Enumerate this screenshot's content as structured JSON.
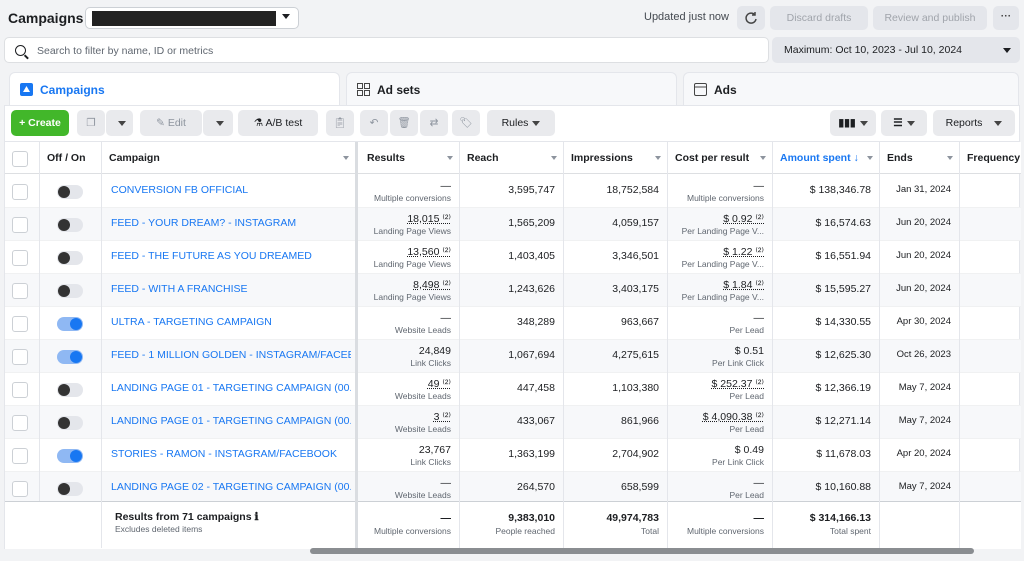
{
  "header": {
    "title": "Campaigns",
    "updated": "Updated just now",
    "discard_label": "Discard drafts",
    "publish_label": "Review and publish",
    "more_label": "···"
  },
  "search": {
    "placeholder": "Search to filter by name, ID or metrics"
  },
  "date_range": "Maximum: Oct 10, 2023 - Jul 10, 2024",
  "tabs": [
    {
      "label": "Campaigns"
    },
    {
      "label": "Ad sets"
    },
    {
      "label": "Ads"
    }
  ],
  "toolbar": {
    "create": "+ Create",
    "edit": "Edit",
    "ab_test": "A/B test",
    "rules": "Rules",
    "reports": "Reports"
  },
  "columns": {
    "offon": "Off / On",
    "campaign": "Campaign",
    "results": "Results",
    "reach": "Reach",
    "impressions": "Impressions",
    "cpr": "Cost per result",
    "amount": "Amount spent ↓",
    "ends": "Ends",
    "frequency": "Frequency"
  },
  "rows": [
    {
      "name": "CONVERSION FB OFFICIAL",
      "on": false,
      "results": "—",
      "results_sub": "Multiple conversions",
      "reach": "3,595,747",
      "impressions": "18,752,584",
      "cpr": "—",
      "cpr_sub": "Multiple conversions",
      "amount": "$ 138,346.78",
      "ends": "Jan 31, 2024"
    },
    {
      "name": "FEED - YOUR DREAM? - INSTAGRAM",
      "on": false,
      "results": "18,015 ⁽²⁾",
      "results_sub": "Landing Page Views",
      "reach": "1,565,209",
      "impressions": "4,059,157",
      "cpr": "$ 0.92 ⁽²⁾",
      "cpr_sub": "Per Landing Page V...",
      "amount": "$ 16,574.63",
      "ends": "Jun 20, 2024"
    },
    {
      "name": "FEED - THE FUTURE AS YOU DREAMED",
      "on": false,
      "results": "13,560 ⁽²⁾",
      "results_sub": "Landing Page Views",
      "reach": "1,403,405",
      "impressions": "3,346,501",
      "cpr": "$ 1.22 ⁽²⁾",
      "cpr_sub": "Per Landing Page V...",
      "amount": "$ 16,551.94",
      "ends": "Jun 20, 2024"
    },
    {
      "name": "FEED - WITH A FRANCHISE",
      "on": false,
      "results": "8,498 ⁽²⁾",
      "results_sub": "Landing Page Views",
      "reach": "1,243,626",
      "impressions": "3,403,175",
      "cpr": "$ 1.84 ⁽²⁾",
      "cpr_sub": "Per Landing Page V...",
      "amount": "$ 15,595.27",
      "ends": "Jun 20, 2024"
    },
    {
      "name": "ULTRA - TARGETING CAMPAIGN",
      "on": true,
      "results": "—",
      "results_sub": "Website Leads",
      "reach": "348,289",
      "impressions": "963,667",
      "cpr": "—",
      "cpr_sub": "Per Lead",
      "amount": "$ 14,330.55",
      "ends": "Apr 30, 2024"
    },
    {
      "name": "FEED - 1 MILLION GOLDEN - INSTAGRAM/FACEB...",
      "on": true,
      "results": "24,849",
      "results_sub": "Link Clicks",
      "reach": "1,067,694",
      "impressions": "4,275,615",
      "cpr": "$ 0.51",
      "cpr_sub": "Per Link Click",
      "amount": "$ 12,625.30",
      "ends": "Oct 26, 2023"
    },
    {
      "name": "LANDING PAGE 01 - TARGETING CAMPAIGN (00...)",
      "on": false,
      "results": "49 ⁽²⁾",
      "results_sub": "Website Leads",
      "reach": "447,458",
      "impressions": "1,103,380",
      "cpr": "$ 252.37 ⁽²⁾",
      "cpr_sub": "Per Lead",
      "amount": "$ 12,366.19",
      "ends": "May 7, 2024"
    },
    {
      "name": "LANDING PAGE 01 - TARGETING CAMPAIGN (00...)",
      "on": false,
      "results": "3 ⁽²⁾",
      "results_sub": "Website Leads",
      "reach": "433,067",
      "impressions": "861,966",
      "cpr": "$ 4,090.38 ⁽²⁾",
      "cpr_sub": "Per Lead",
      "amount": "$ 12,271.14",
      "ends": "May 7, 2024"
    },
    {
      "name": "STORIES - RAMON - INSTAGRAM/FACEBOOK",
      "on": true,
      "results": "23,767",
      "results_sub": "Link Clicks",
      "reach": "1,363,199",
      "impressions": "2,704,902",
      "cpr": "$ 0.49",
      "cpr_sub": "Per Link Click",
      "amount": "$ 11,678.03",
      "ends": "Apr 20, 2024"
    },
    {
      "name": "LANDING PAGE 02 - TARGETING CAMPAIGN (00...)",
      "on": false,
      "results": "—",
      "results_sub": "Website Leads",
      "reach": "264,570",
      "impressions": "658,599",
      "cpr": "—",
      "cpr_sub": "Per Lead",
      "amount": "$ 10,160.88",
      "ends": "May 7, 2024"
    }
  ],
  "footer": {
    "label": "Results from 71 campaigns ℹ",
    "sublabel": "Excludes deleted items",
    "results": "—",
    "results_sub": "Multiple conversions",
    "reach": "9,383,010",
    "reach_sub": "People reached",
    "impressions": "49,974,783",
    "impressions_sub": "Total",
    "cpr": "—",
    "cpr_sub": "Multiple conversions",
    "amount": "$ 314,166.13",
    "amount_sub": "Total spent"
  },
  "colors": {
    "accent": "#1877f2",
    "create": "#42b72a"
  }
}
